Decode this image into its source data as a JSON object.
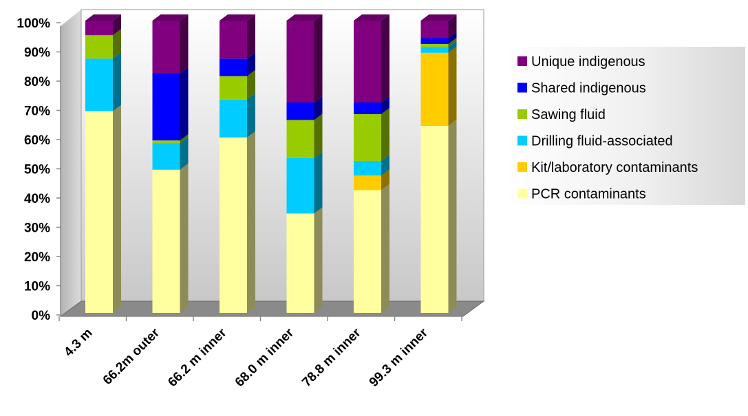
{
  "chart_data": {
    "type": "bar",
    "stacked": true,
    "percent": true,
    "three_d": true,
    "title": "",
    "xlabel": "",
    "ylabel": "",
    "ylim": [
      0,
      100
    ],
    "y_ticks": [
      "0%",
      "10%",
      "20%",
      "30%",
      "40%",
      "50%",
      "60%",
      "70%",
      "80%",
      "90%",
      "100%"
    ],
    "categories": [
      "4.3 m",
      "66.2m outer",
      "66.2 m inner",
      "68.0 m inner",
      "78.8 m inner",
      "99.3 m inner"
    ],
    "series": [
      {
        "name": "PCR contaminants",
        "color": "#FFFFA0",
        "values": [
          69,
          49,
          60,
          34,
          42,
          64
        ]
      },
      {
        "name": "Kit/laboratory contaminants",
        "color": "#FFCC00",
        "values": [
          0,
          0,
          0,
          0,
          5,
          25
        ]
      },
      {
        "name": "Drilling fluid-associated",
        "color": "#00CCFF",
        "values": [
          18,
          9,
          13,
          19,
          5,
          2
        ]
      },
      {
        "name": "Sawing fluid",
        "color": "#99CC00",
        "values": [
          8,
          1,
          8,
          13,
          16,
          1
        ]
      },
      {
        "name": "Shared indigenous",
        "color": "#0000FF",
        "values": [
          0,
          23,
          6,
          6,
          4,
          2
        ]
      },
      {
        "name": "Unique indigenous",
        "color": "#800080",
        "values": [
          5,
          18,
          13,
          28,
          28,
          6
        ]
      }
    ],
    "legend_position": "right",
    "legend_order": [
      "Unique indigenous",
      "Shared indigenous",
      "Sawing fluid",
      "Drilling fluid-associated",
      "Kit/laboratory contaminants",
      "PCR contaminants"
    ],
    "grid": false
  }
}
